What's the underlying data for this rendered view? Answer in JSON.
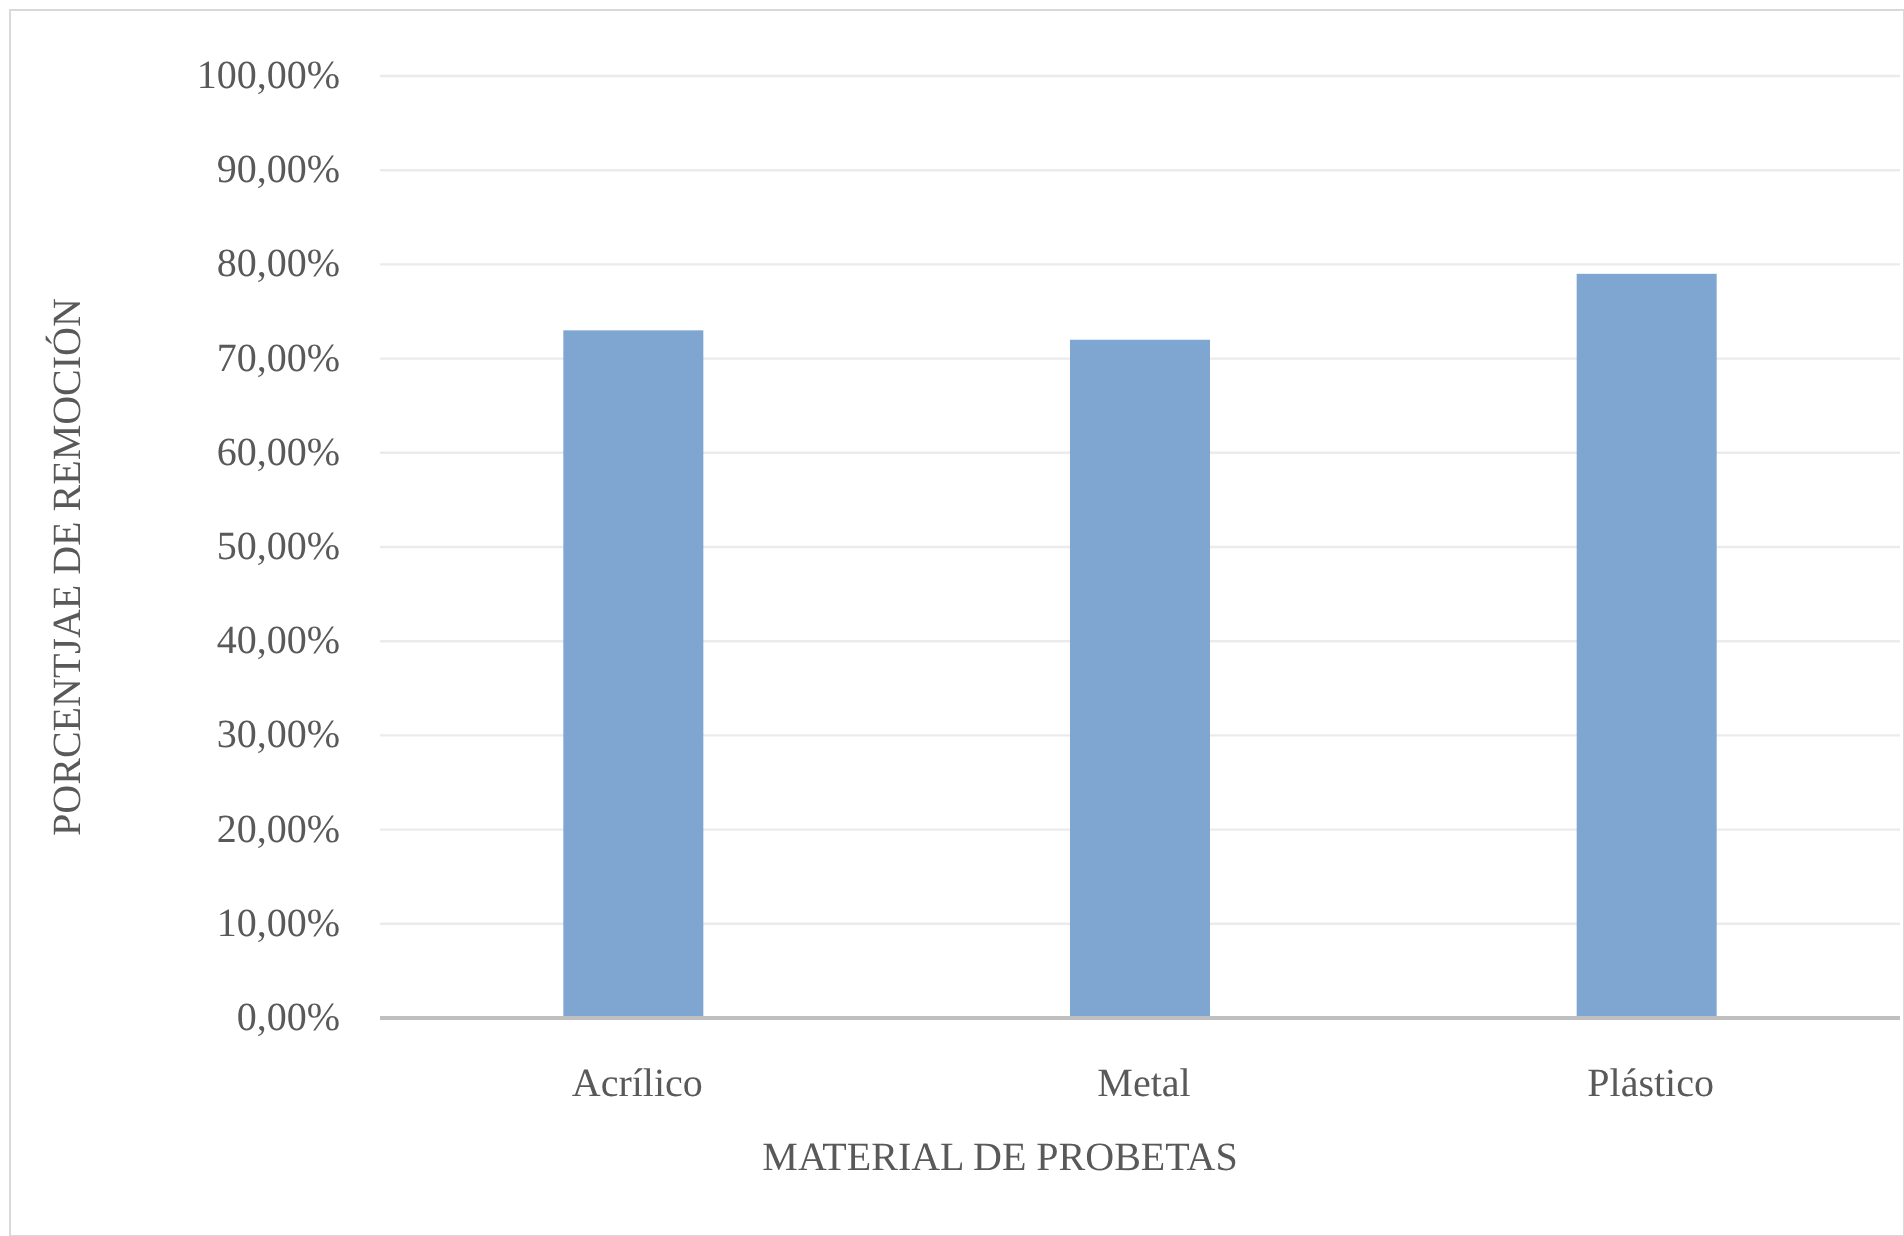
{
  "chart_data": {
    "type": "bar",
    "xlabel": "MATERIAL DE PROBETAS",
    "ylabel": "PORCENTJAE DE REMOCIÓN",
    "categories": [
      "Acrílico",
      "Metal",
      "Plástico"
    ],
    "values": [
      73,
      72,
      79
    ],
    "color": "#7fa6d0",
    "ylim": [
      0,
      100
    ],
    "yticks": [
      {
        "value": 0,
        "label": "0,00%"
      },
      {
        "value": 10,
        "label": "10,00%"
      },
      {
        "value": 20,
        "label": "20,00%"
      },
      {
        "value": 30,
        "label": "30,00%"
      },
      {
        "value": 40,
        "label": "40,00%"
      },
      {
        "value": 50,
        "label": "50,00%"
      },
      {
        "value": 60,
        "label": "60,00%"
      },
      {
        "value": 70,
        "label": "70,00%"
      },
      {
        "value": 80,
        "label": "80,00%"
      },
      {
        "value": 90,
        "label": "90,00%"
      },
      {
        "value": 100,
        "label": "100,00%"
      }
    ],
    "grid": "y"
  }
}
